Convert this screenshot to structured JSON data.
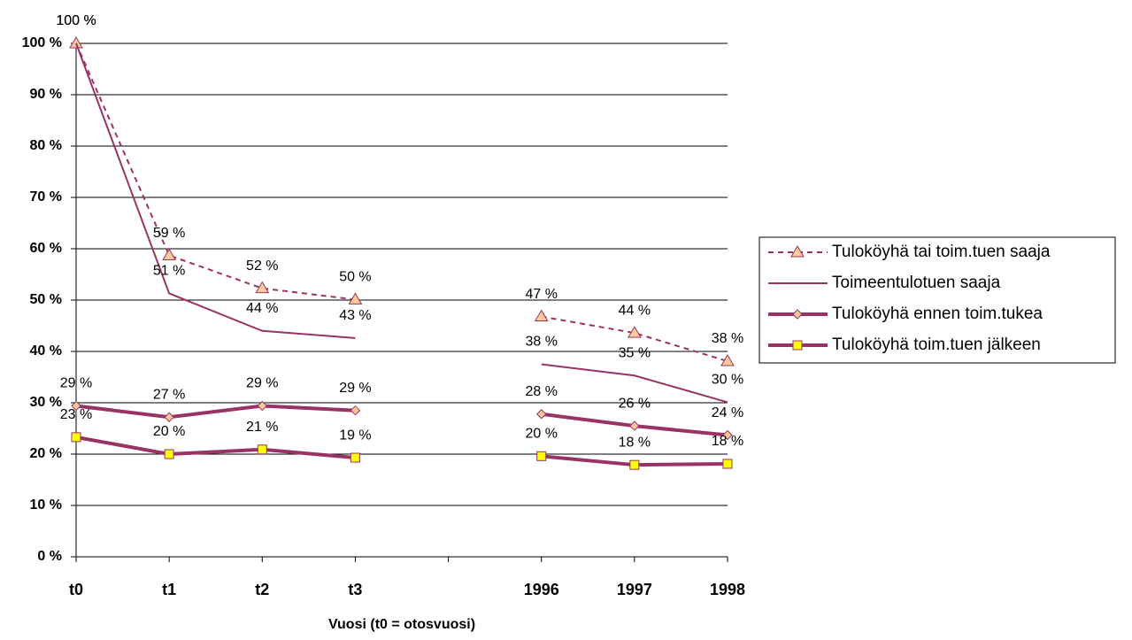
{
  "chart_data": {
    "type": "line",
    "x_label": "Vuosi (t0 = otosvuosi)",
    "categories": [
      "t0",
      "t1",
      "t2",
      "t3",
      null,
      "1996",
      "1997",
      "1998"
    ],
    "ylim": [
      0,
      100
    ],
    "yticks": [
      {
        "value": 0,
        "label": "0 %"
      },
      {
        "value": 10,
        "label": "10 %"
      },
      {
        "value": 20,
        "label": "20 %"
      },
      {
        "value": 30,
        "label": "30 %"
      },
      {
        "value": 40,
        "label": "40 %"
      },
      {
        "value": 50,
        "label": "50 %"
      },
      {
        "value": 60,
        "label": "60 %"
      },
      {
        "value": 70,
        "label": "70 %"
      },
      {
        "value": 80,
        "label": "80 %"
      },
      {
        "value": 90,
        "label": "90 %"
      },
      {
        "value": 100,
        "label": "100 %"
      }
    ],
    "grid": true,
    "legend": "right",
    "series": [
      {
        "name": "Tuloköyhä tai toim.tuen saaja",
        "color": "#993366",
        "dash": true,
        "line_width": 2,
        "marker": "triangle",
        "marker_color": "#ffcc99",
        "values": [
          100,
          58.7,
          52.3,
          50.1,
          null,
          46.8,
          43.6,
          38.1
        ],
        "value_labels": [
          "100 %",
          "59 %",
          "52 %",
          "50 %",
          null,
          "47 %",
          "44 %",
          "38 %"
        ]
      },
      {
        "name": "Toimeentulotuen saaja",
        "color": "#993366",
        "dash": false,
        "line_width": 2,
        "marker": "none",
        "marker_color": "#993366",
        "values": [
          100,
          51.3,
          44.0,
          42.6,
          null,
          37.5,
          35.3,
          30.1
        ],
        "value_labels": [
          "100 %",
          "51 %",
          "44 %",
          "43 %",
          null,
          "38 %",
          "35 %",
          "30 %"
        ]
      },
      {
        "name": "Tuloköyhä ennen toim.tukea",
        "color": "#993366",
        "dash": false,
        "line_width": 4,
        "marker": "diamond",
        "marker_color": "#ffcc99",
        "values": [
          29.4,
          27.2,
          29.4,
          28.5,
          null,
          27.8,
          25.5,
          23.7
        ],
        "value_labels": [
          "29 %",
          "27 %",
          "29 %",
          "29 %",
          null,
          "28 %",
          "26 %",
          "24 %"
        ]
      },
      {
        "name": "Tuloköyhä toim.tuen jälkeen",
        "color": "#993366",
        "dash": false,
        "line_width": 4,
        "marker": "square",
        "marker_color": "#ffff00",
        "values": [
          23.3,
          20.0,
          20.9,
          19.3,
          null,
          19.6,
          17.9,
          18.1
        ],
        "value_labels": [
          "23 %",
          "20 %",
          "21 %",
          "19 %",
          null,
          "20 %",
          "18 %",
          "18 %"
        ]
      }
    ]
  }
}
